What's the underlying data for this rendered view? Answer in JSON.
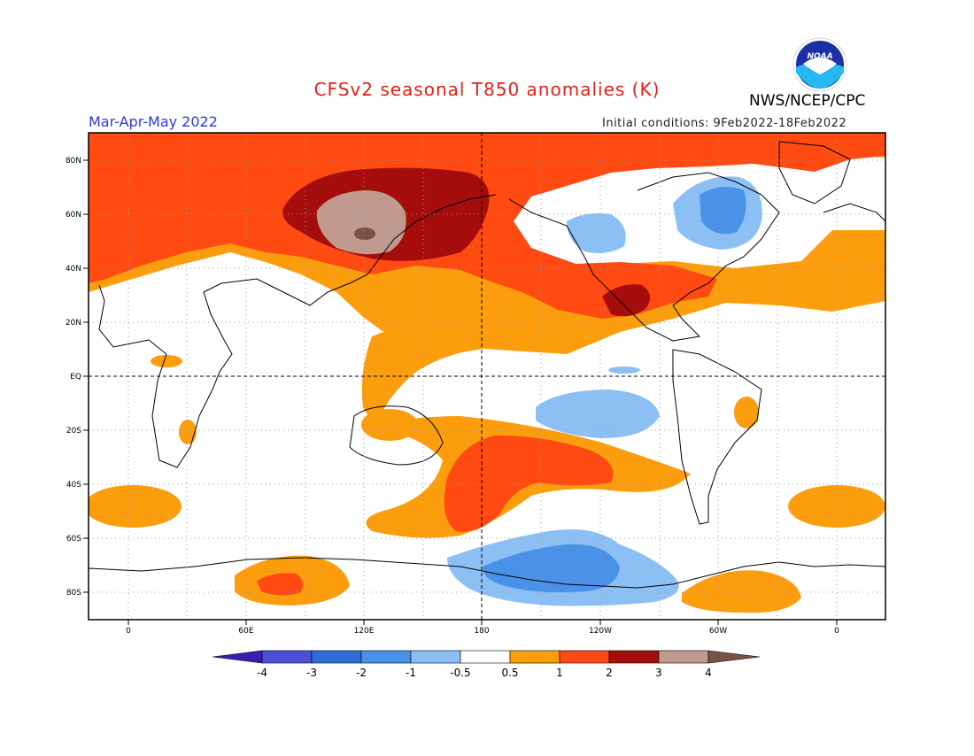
{
  "header": {
    "title": "CFSv2 seasonal T850 anomalies (K)",
    "organization": "NWS/NCEP/CPC",
    "season": "Mar-Apr-May 2022",
    "initial_conditions": "Initial conditions: 9Feb2022-18Feb2022",
    "logo_text": "NOAA"
  },
  "map": {
    "lat_labels": [
      "80N",
      "60N",
      "40N",
      "20N",
      "EQ",
      "20S",
      "40S",
      "60S",
      "80S"
    ],
    "lon_labels": [
      "0",
      "60E",
      "120E",
      "180",
      "120W",
      "60W",
      "0"
    ]
  },
  "colorbar": {
    "labels": [
      "-4",
      "-3",
      "-2",
      "-1",
      "-0.5",
      "0.5",
      "1",
      "2",
      "3",
      "4"
    ],
    "colors": [
      "#3a1fb0",
      "#4b4fd6",
      "#2d6fd6",
      "#4a92e8",
      "#8cc0f4",
      "#ffffff",
      "#fb9d0c",
      "#ff4a12",
      "#a50d0d",
      "#c09a8e",
      "#7b5046"
    ]
  },
  "colors": {
    "title": "#e0201a",
    "season": "#2a3bd8",
    "anomaly_0_5_to_1": "#fb9d0c",
    "anomaly_1_to_2": "#ff4a12",
    "anomaly_2_to_3": "#a50d0d",
    "anomaly_3_to_4": "#c09a8e",
    "anomaly_gt_4": "#7b5046",
    "anomaly_neg_0_5_to_neg_1": "#8cc0f4",
    "anomaly_neg_1_to_neg_2": "#4a92e8"
  }
}
